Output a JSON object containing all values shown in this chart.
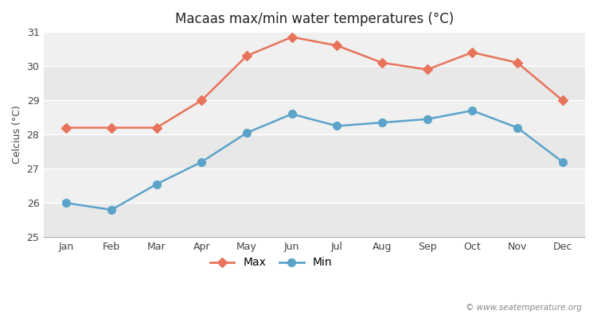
{
  "title": "Macaas max/min water temperatures (°C)",
  "ylabel": "Celcius (°C)",
  "months": [
    "Jan",
    "Feb",
    "Mar",
    "Apr",
    "May",
    "Jun",
    "Jul",
    "Aug",
    "Sep",
    "Oct",
    "Nov",
    "Dec"
  ],
  "max_temps": [
    28.2,
    28.2,
    28.2,
    29.0,
    30.3,
    30.85,
    30.6,
    30.1,
    29.9,
    30.4,
    30.1,
    29.0
  ],
  "min_temps": [
    26.0,
    25.8,
    26.55,
    27.2,
    28.05,
    28.6,
    28.25,
    28.35,
    28.45,
    28.7,
    28.2,
    27.2
  ],
  "max_color": "#e8735a",
  "min_color": "#5ba3c9",
  "bg_color": "#ffffff",
  "plot_bg_color": "#f0f0f0",
  "band_colors": [
    "#e8e8e8",
    "#f0f0f0"
  ],
  "ylim": [
    25,
    31
  ],
  "yticks": [
    25,
    26,
    27,
    28,
    29,
    30,
    31
  ],
  "legend_labels": [
    "Max",
    "Min"
  ],
  "watermark": "© www.seatemperature.org",
  "max_marker": "D",
  "min_marker": "o",
  "linewidth": 1.8,
  "max_markersize": 6,
  "min_markersize": 7
}
